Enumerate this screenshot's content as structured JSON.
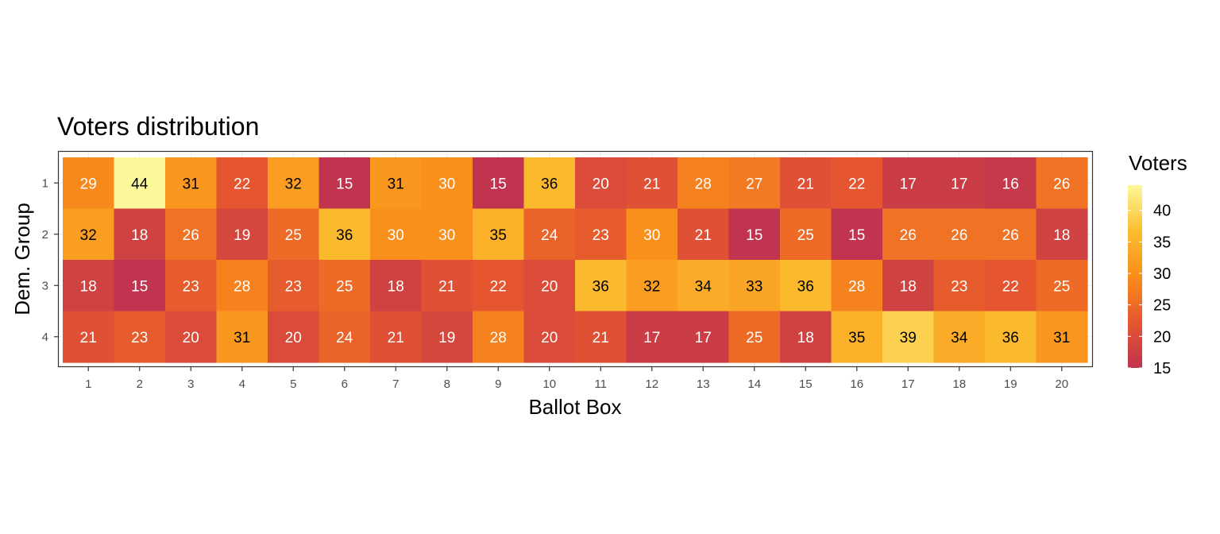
{
  "chart_data": {
    "type": "heatmap",
    "title": "Voters distribution",
    "xlabel": "Ballot Box",
    "ylabel": "Dem. Group",
    "x_categories": [
      "1",
      "2",
      "3",
      "4",
      "5",
      "6",
      "7",
      "8",
      "9",
      "10",
      "11",
      "12",
      "13",
      "14",
      "15",
      "16",
      "17",
      "18",
      "19",
      "20"
    ],
    "y_categories": [
      "1",
      "2",
      "3",
      "4"
    ],
    "values": [
      [
        29,
        44,
        31,
        22,
        32,
        15,
        31,
        30,
        15,
        36,
        20,
        21,
        28,
        27,
        21,
        22,
        17,
        17,
        16,
        26
      ],
      [
        32,
        18,
        26,
        19,
        25,
        36,
        30,
        30,
        35,
        24,
        23,
        30,
        21,
        15,
        25,
        15,
        26,
        26,
        26,
        18
      ],
      [
        18,
        15,
        23,
        28,
        23,
        25,
        18,
        21,
        22,
        20,
        36,
        32,
        34,
        33,
        36,
        28,
        18,
        23,
        22,
        25
      ],
      [
        21,
        23,
        20,
        31,
        20,
        24,
        21,
        19,
        28,
        20,
        21,
        17,
        17,
        25,
        18,
        35,
        39,
        34,
        36,
        31
      ]
    ],
    "legend": {
      "title": "Voters",
      "ticks": [
        15,
        20,
        25,
        30,
        35,
        40
      ],
      "range": [
        15,
        44
      ],
      "placement": "right"
    },
    "colorscale": [
      "#c0344f",
      "#e5562f",
      "#f98d1b",
      "#fbbe2f",
      "#fdf89a"
    ],
    "cell_text_dark": "#000000",
    "cell_text_light": "#ffffff",
    "grid": true
  }
}
